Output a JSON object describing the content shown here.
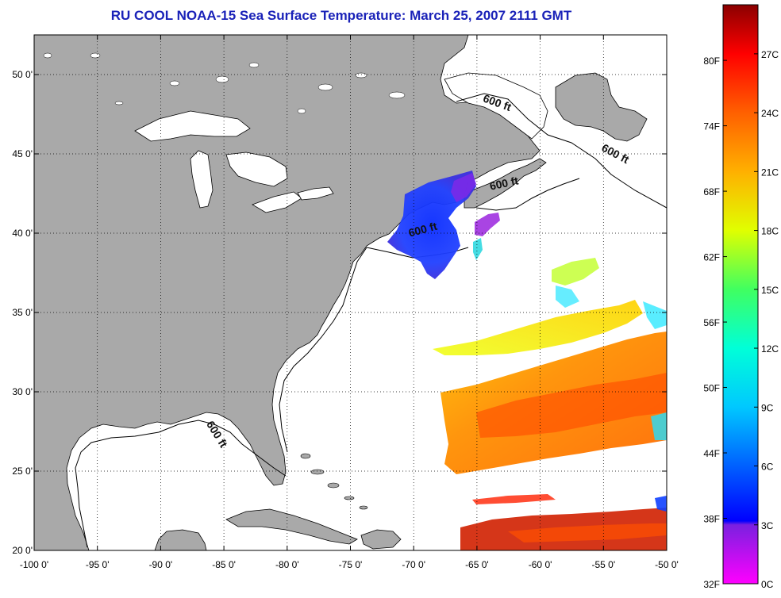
{
  "title": "RU COOL  NOAA-15  Sea Surface Temperature:  March 25, 2007 2111 GMT",
  "map": {
    "lon_range": [
      -100,
      -50
    ],
    "lat_range": [
      20,
      52.5
    ],
    "lon_ticks": [
      {
        "value": -100,
        "label": "-100 0'"
      },
      {
        "value": -95,
        "label": "-95 0'"
      },
      {
        "value": -90,
        "label": "-90 0'"
      },
      {
        "value": -85,
        "label": "-85 0'"
      },
      {
        "value": -80,
        "label": "-80 0'"
      },
      {
        "value": -75,
        "label": "-75 0'"
      },
      {
        "value": -70,
        "label": "-70 0'"
      },
      {
        "value": -65,
        "label": "-65 0'"
      },
      {
        "value": -60,
        "label": "-60 0'"
      },
      {
        "value": -55,
        "label": "-55 0'"
      },
      {
        "value": -50,
        "label": "-50 0'"
      }
    ],
    "lat_ticks": [
      {
        "value": 20,
        "label": "20 0'"
      },
      {
        "value": 25,
        "label": "25 0'"
      },
      {
        "value": 30,
        "label": "30 0'"
      },
      {
        "value": 35,
        "label": "35 0'"
      },
      {
        "value": 40,
        "label": "40 0'"
      },
      {
        "value": 45,
        "label": "45 0'"
      },
      {
        "value": 50,
        "label": "50 0'"
      }
    ],
    "contour_labels": [
      {
        "text": "600 ft",
        "lon": -63.5,
        "lat": 48.0,
        "angle": 20
      },
      {
        "text": "600 ft",
        "lon": -54.2,
        "lat": 44.8,
        "angle": 28
      },
      {
        "text": "600 ft",
        "lon": -62.8,
        "lat": 42.9,
        "angle": -12
      },
      {
        "text": "600 ft",
        "lon": -69.2,
        "lat": 40.0,
        "angle": -15
      },
      {
        "text": "600 ft",
        "lon": -85.8,
        "lat": 27.2,
        "angle": 58
      }
    ],
    "colors": {
      "land": "#a9a9a9",
      "ocean": "#ffffff",
      "grid": "#000000"
    }
  },
  "colorbar": {
    "fahrenheit_labels": [
      {
        "value": 32,
        "label": "32F"
      },
      {
        "value": 38,
        "label": "38F"
      },
      {
        "value": 44,
        "label": "44F"
      },
      {
        "value": 50,
        "label": "50F"
      },
      {
        "value": 56,
        "label": "56F"
      },
      {
        "value": 62,
        "label": "62F"
      },
      {
        "value": 68,
        "label": "68F"
      },
      {
        "value": 74,
        "label": "74F"
      },
      {
        "value": 80,
        "label": "80F"
      }
    ],
    "celsius_labels": [
      {
        "value": 0,
        "label": "0C"
      },
      {
        "value": 3,
        "label": "3C"
      },
      {
        "value": 6,
        "label": "6C"
      },
      {
        "value": 9,
        "label": "9C"
      },
      {
        "value": 12,
        "label": "12C"
      },
      {
        "value": 15,
        "label": "15C"
      },
      {
        "value": 18,
        "label": "18C"
      },
      {
        "value": 21,
        "label": "21C"
      },
      {
        "value": 24,
        "label": "24C"
      },
      {
        "value": 27,
        "label": "27C"
      }
    ],
    "range_c": [
      0,
      29.5
    ],
    "stops": [
      {
        "c": 0,
        "color": "#ff00ff"
      },
      {
        "c": 3,
        "color": "#7a20e0"
      },
      {
        "c": 3.2,
        "color": "#0000ff"
      },
      {
        "c": 6,
        "color": "#0060ff"
      },
      {
        "c": 9,
        "color": "#00c8ff"
      },
      {
        "c": 12,
        "color": "#00ffd8"
      },
      {
        "c": 15,
        "color": "#40ff60"
      },
      {
        "c": 18,
        "color": "#e0ff00"
      },
      {
        "c": 21,
        "color": "#ffb000"
      },
      {
        "c": 24,
        "color": "#ff6000"
      },
      {
        "c": 27,
        "color": "#ff0000"
      },
      {
        "c": 29.5,
        "color": "#8b0000"
      }
    ]
  }
}
